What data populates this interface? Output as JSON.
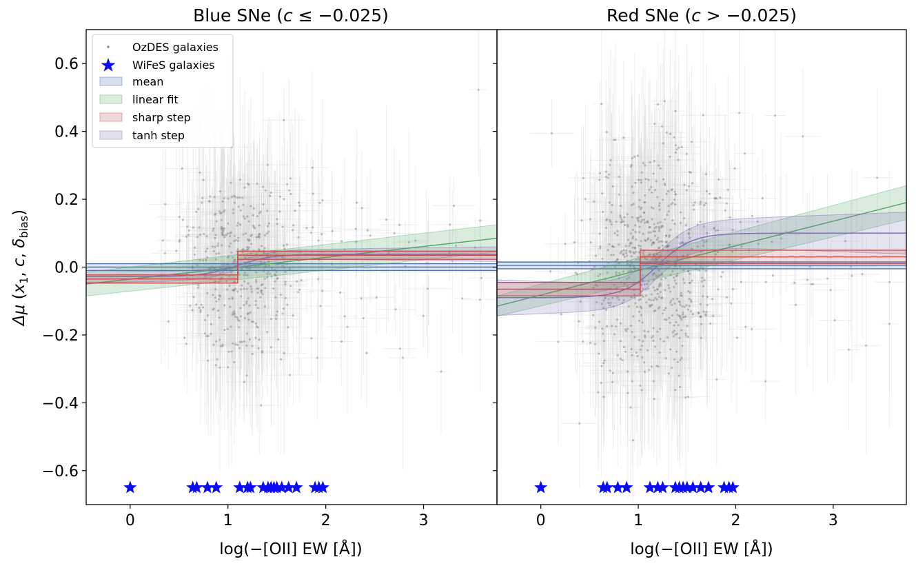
{
  "chart_data": [
    {
      "type": "scatter",
      "title": "Blue SNe (c ≤ −0.025)",
      "title_prefix": "Blue SNe (",
      "title_var": "c",
      "title_rest": " ≤ −0.025)",
      "xlabel": "log(−[OII] EW [Å])",
      "ylabel": "Δμ (x₁, c, δbias)",
      "ylabel_parts": {
        "delta_mu": "Δμ",
        "open": "(",
        "x": "x",
        "sub1": "1",
        "c": "c",
        "delta": "δ",
        "bias": "bias",
        "close": ")"
      },
      "xlim": [
        -0.45,
        3.75
      ],
      "ylim": [
        -0.7,
        0.7
      ],
      "xticks": [
        "0",
        "1",
        "2",
        "3"
      ],
      "yticks": [
        "−0.6",
        "−0.4",
        "−0.2",
        "0.0",
        "0.2",
        "0.4",
        "0.6"
      ],
      "legend_position": "top-left",
      "legend": [
        "OzDES galaxies",
        "WiFeS galaxies",
        "mean",
        "linear fit",
        "sharp step",
        "tanh step"
      ],
      "wifes_x": [
        0.0,
        0.64,
        0.68,
        0.79,
        0.88,
        1.12,
        1.2,
        1.23,
        1.36,
        1.41,
        1.44,
        1.47,
        1.5,
        1.55,
        1.62,
        1.7,
        1.89,
        1.93,
        1.97
      ],
      "wifes_y": -0.65,
      "mean": {
        "center": 0.0,
        "band": [
          -0.01,
          0.01
        ]
      },
      "linear_fit": {
        "x": [
          -0.45,
          3.75
        ],
        "y": [
          -0.05,
          0.085
        ],
        "lower": [
          -0.085,
          0.045
        ],
        "upper": [
          -0.015,
          0.125
        ]
      },
      "sharp_step": {
        "step_x": 1.1,
        "low": -0.035,
        "high": 0.035,
        "band": 0.012
      },
      "tanh_step": {
        "step_x": 1.1,
        "low": -0.028,
        "high": 0.038,
        "band": 0.012
      },
      "ozdes_points": {
        "count": 520,
        "x_mean": 1.15,
        "x_sd": 0.33,
        "y_mean": 0.0,
        "y_sd": 0.14,
        "seed": 11
      }
    },
    {
      "type": "scatter",
      "title": "Red SNe (c > −0.025)",
      "title_prefix": "Red SNe (",
      "title_var": "c",
      "title_rest": " > −0.025)",
      "xlabel": "log(−[OII] EW [Å])",
      "xlim": [
        -0.45,
        3.75
      ],
      "ylim": [
        -0.7,
        0.7
      ],
      "xticks": [
        "0",
        "1",
        "2",
        "3"
      ],
      "wifes_x": [
        0.0,
        0.64,
        0.68,
        0.79,
        0.88,
        1.12,
        1.2,
        1.25,
        1.38,
        1.42,
        1.46,
        1.5,
        1.56,
        1.64,
        1.72,
        1.88,
        1.93,
        1.97
      ],
      "wifes_y": -0.65,
      "mean": {
        "center": 0.005,
        "band": [
          -0.005,
          0.015
        ]
      },
      "linear_fit": {
        "x": [
          -0.45,
          3.75
        ],
        "y": [
          -0.115,
          0.19
        ],
        "lower": [
          -0.145,
          0.14
        ],
        "upper": [
          -0.085,
          0.24
        ]
      },
      "sharp_step": {
        "step_x": 1.02,
        "low": -0.065,
        "high": 0.03,
        "band": 0.02
      },
      "tanh_step": {
        "step_x": 1.2,
        "low": -0.09,
        "high": 0.1,
        "band": 0.035
      },
      "ozdes_points": {
        "count": 760,
        "x_mean": 1.15,
        "x_sd": 0.36,
        "y_mean": 0.0,
        "y_sd": 0.17,
        "seed": 29
      }
    }
  ],
  "colors": {
    "points": "#7f7f7f",
    "errorbars": "#d9d9d9",
    "wifes": "#0a0af5",
    "mean": "#4c72b0",
    "linear": "#55a868",
    "sharp": "#c44e52",
    "tanh": "#8172b2"
  }
}
